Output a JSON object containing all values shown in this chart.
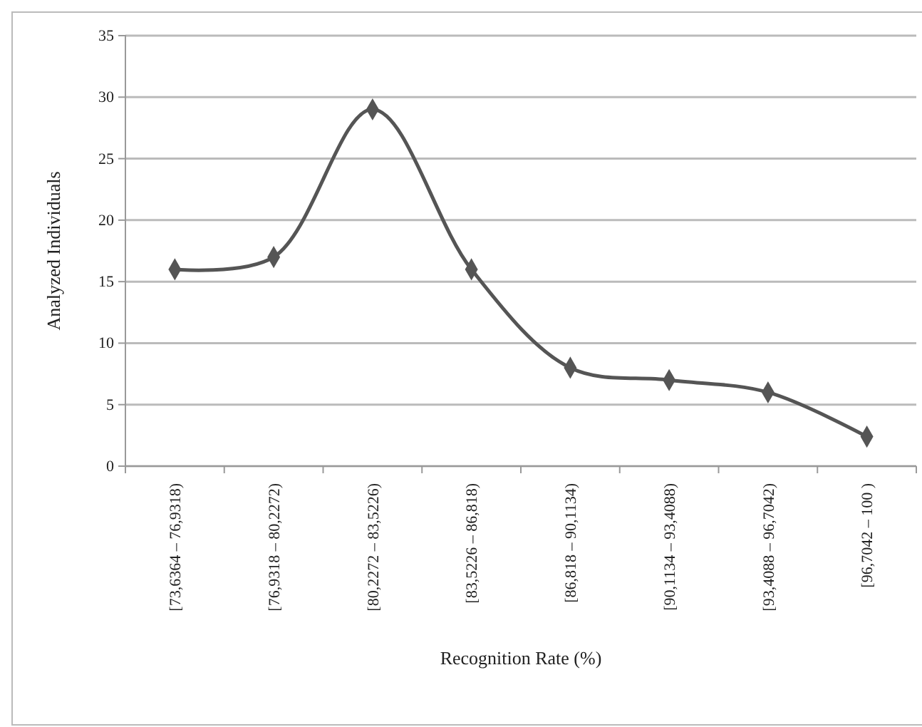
{
  "chart_data": {
    "type": "line",
    "xlabel": "Recognition Rate (%)",
    "ylabel": "Analyzed Individuals",
    "categories": [
      "[73,6364 – 76,9318)",
      "[76,9318 – 80,2272)",
      "[80,2272 – 83,5226)",
      "[83,5226 – 86,818)",
      "[86,818 – 90,1134)",
      "[90,1134 – 93,4088)",
      "[93,4088 – 96,7042)",
      "[96,7042 – 100 )"
    ],
    "series": [
      {
        "color": "#555555",
        "values": [
          16,
          17,
          29,
          16,
          8,
          7,
          6,
          2.4
        ]
      }
    ],
    "ylim": [
      0,
      35
    ],
    "yticks": [
      0,
      5,
      10,
      15,
      20,
      25,
      30,
      35
    ],
    "grid": "y",
    "marker": "diamond",
    "line_style": "solid"
  }
}
